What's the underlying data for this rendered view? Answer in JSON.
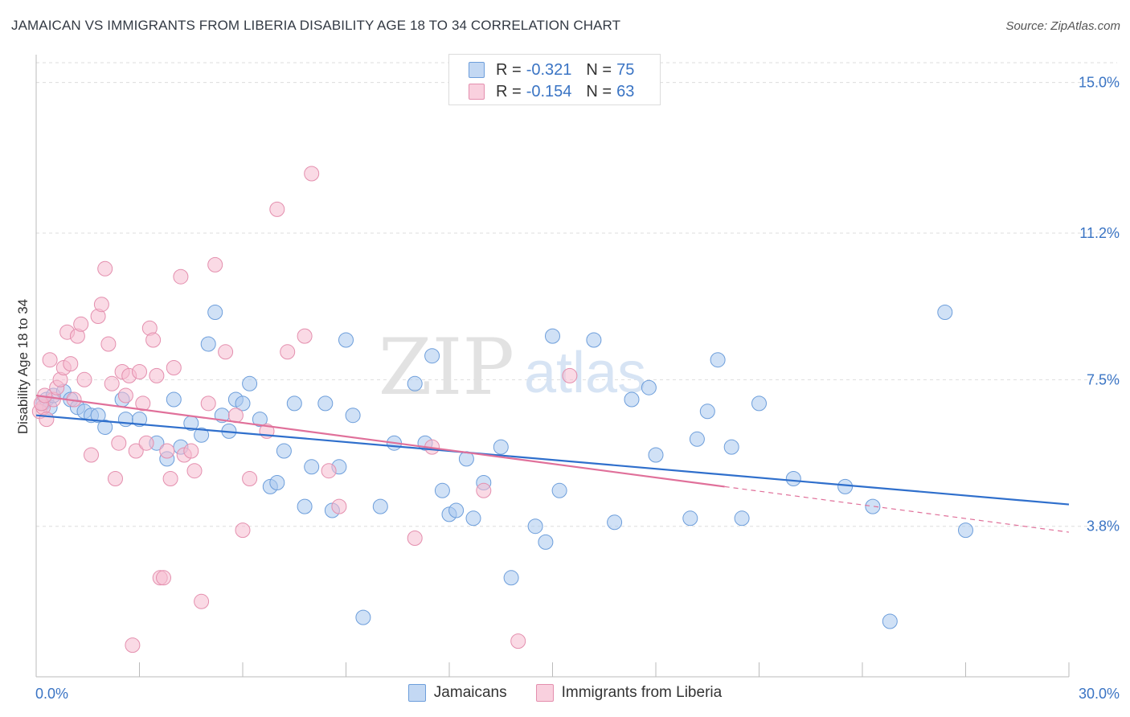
{
  "header": {
    "title": "JAMAICAN VS IMMIGRANTS FROM LIBERIA DISABILITY AGE 18 TO 34 CORRELATION CHART",
    "source": "Source: ZipAtlas.com"
  },
  "watermark": {
    "zip": "ZIP",
    "atlas": "atlas"
  },
  "legend": {
    "rows": [
      {
        "r_label": "R =",
        "r_value": "-0.321",
        "n_label": "N =",
        "n_value": "75"
      },
      {
        "r_label": "R =",
        "r_value": "-0.154",
        "n_label": "N =",
        "n_value": "63"
      }
    ]
  },
  "colors": {
    "blue_fill": "#a9c8ef",
    "blue_stroke": "#6d9edb",
    "blue_line": "#2f6fcc",
    "pink_fill": "#f6bcd0",
    "pink_stroke": "#e48fae",
    "pink_line": "#e0709a",
    "tick_label": "#3a74c4",
    "grid": "#dddddd"
  },
  "chart_data": {
    "type": "scatter",
    "title": "JAMAICAN VS IMMIGRANTS FROM LIBERIA DISABILITY AGE 18 TO 34 CORRELATION CHART",
    "xlabel": "",
    "ylabel": "Disability Age 18 to 34",
    "xlim": [
      0,
      30
    ],
    "ylim": [
      0,
      15.5
    ],
    "x_tick_labels": [
      "0.0%",
      "30.0%"
    ],
    "y_ticks": [
      3.8,
      7.5,
      11.2,
      15.0
    ],
    "y_tick_labels": [
      "3.8%",
      "7.5%",
      "11.2%",
      "15.0%"
    ],
    "grid": true,
    "legend_position": "bottom-center",
    "series": [
      {
        "name": "Jamaicans",
        "color": "#a9c8ef",
        "trend": {
          "x0": 0,
          "y0": 6.6,
          "x1": 30,
          "y1": 4.35
        },
        "points": [
          [
            0.2,
            6.9
          ],
          [
            0.3,
            7.0
          ],
          [
            0.4,
            6.8
          ],
          [
            0.5,
            7.1
          ],
          [
            0.8,
            7.2
          ],
          [
            1.0,
            7.0
          ],
          [
            1.2,
            6.8
          ],
          [
            1.4,
            6.7
          ],
          [
            1.6,
            6.6
          ],
          [
            1.8,
            6.6
          ],
          [
            2.0,
            6.3
          ],
          [
            2.5,
            7.0
          ],
          [
            2.6,
            6.5
          ],
          [
            3.0,
            6.5
          ],
          [
            3.5,
            5.9
          ],
          [
            3.8,
            5.5
          ],
          [
            4.0,
            7.0
          ],
          [
            4.2,
            5.8
          ],
          [
            4.5,
            6.4
          ],
          [
            4.8,
            6.1
          ],
          [
            5.0,
            8.4
          ],
          [
            5.2,
            9.2
          ],
          [
            5.4,
            6.6
          ],
          [
            5.6,
            6.2
          ],
          [
            5.8,
            7.0
          ],
          [
            6.0,
            6.9
          ],
          [
            6.2,
            7.4
          ],
          [
            6.5,
            6.5
          ],
          [
            6.8,
            4.8
          ],
          [
            7.0,
            4.9
          ],
          [
            7.2,
            5.7
          ],
          [
            7.5,
            6.9
          ],
          [
            7.8,
            4.3
          ],
          [
            8.0,
            5.3
          ],
          [
            8.4,
            6.9
          ],
          [
            8.6,
            4.2
          ],
          [
            8.8,
            5.3
          ],
          [
            9.0,
            8.5
          ],
          [
            9.2,
            6.6
          ],
          [
            9.5,
            1.5
          ],
          [
            10.0,
            4.3
          ],
          [
            10.4,
            5.9
          ],
          [
            11.0,
            7.4
          ],
          [
            11.3,
            5.9
          ],
          [
            11.5,
            8.1
          ],
          [
            11.8,
            4.7
          ],
          [
            12.0,
            4.1
          ],
          [
            12.2,
            4.2
          ],
          [
            12.5,
            5.5
          ],
          [
            12.7,
            4.0
          ],
          [
            13.0,
            4.9
          ],
          [
            13.5,
            5.8
          ],
          [
            13.8,
            2.5
          ],
          [
            14.5,
            3.8
          ],
          [
            14.8,
            3.4
          ],
          [
            15.0,
            8.6
          ],
          [
            15.2,
            4.7
          ],
          [
            16.2,
            8.5
          ],
          [
            16.8,
            3.9
          ],
          [
            17.3,
            7.0
          ],
          [
            17.8,
            7.3
          ],
          [
            18.0,
            5.6
          ],
          [
            19.0,
            4.0
          ],
          [
            19.2,
            6.0
          ],
          [
            19.5,
            6.7
          ],
          [
            19.8,
            8.0
          ],
          [
            20.2,
            5.8
          ],
          [
            20.5,
            4.0
          ],
          [
            21.0,
            6.9
          ],
          [
            22.0,
            5.0
          ],
          [
            23.5,
            4.8
          ],
          [
            24.3,
            4.3
          ],
          [
            24.8,
            1.4
          ],
          [
            26.4,
            9.2
          ],
          [
            27.0,
            3.7
          ]
        ]
      },
      {
        "name": "Immigrants from Liberia",
        "color": "#f6bcd0",
        "trend": {
          "x0": 0,
          "y0": 7.1,
          "x1": 20.0,
          "y1": 4.8,
          "dashed_to_x": 30,
          "dashed_to_y": 3.65
        },
        "points": [
          [
            0.1,
            6.7
          ],
          [
            0.2,
            6.8
          ],
          [
            0.3,
            6.5
          ],
          [
            0.4,
            8.0
          ],
          [
            0.5,
            7.0
          ],
          [
            0.6,
            7.3
          ],
          [
            0.7,
            7.5
          ],
          [
            0.8,
            7.8
          ],
          [
            0.9,
            8.7
          ],
          [
            1.0,
            7.9
          ],
          [
            1.1,
            7.0
          ],
          [
            1.2,
            8.6
          ],
          [
            1.3,
            8.9
          ],
          [
            1.4,
            7.5
          ],
          [
            1.6,
            5.6
          ],
          [
            1.8,
            9.1
          ],
          [
            1.9,
            9.4
          ],
          [
            2.0,
            10.3
          ],
          [
            2.1,
            8.4
          ],
          [
            2.2,
            7.4
          ],
          [
            2.3,
            5.0
          ],
          [
            2.4,
            5.9
          ],
          [
            2.5,
            7.7
          ],
          [
            2.6,
            7.1
          ],
          [
            2.7,
            7.6
          ],
          [
            2.8,
            0.8
          ],
          [
            2.9,
            5.7
          ],
          [
            3.0,
            7.7
          ],
          [
            3.1,
            6.9
          ],
          [
            3.2,
            5.9
          ],
          [
            3.3,
            8.8
          ],
          [
            3.4,
            8.5
          ],
          [
            3.5,
            7.6
          ],
          [
            3.6,
            2.5
          ],
          [
            3.7,
            2.5
          ],
          [
            3.8,
            5.7
          ],
          [
            3.9,
            5.0
          ],
          [
            4.0,
            7.8
          ],
          [
            4.2,
            10.1
          ],
          [
            4.3,
            5.6
          ],
          [
            4.5,
            5.7
          ],
          [
            4.6,
            5.2
          ],
          [
            4.8,
            1.9
          ],
          [
            5.0,
            6.9
          ],
          [
            5.2,
            10.4
          ],
          [
            5.5,
            8.2
          ],
          [
            5.8,
            6.6
          ],
          [
            6.0,
            3.7
          ],
          [
            6.2,
            5.0
          ],
          [
            6.7,
            6.2
          ],
          [
            7.0,
            11.8
          ],
          [
            7.3,
            8.2
          ],
          [
            7.8,
            8.6
          ],
          [
            8.0,
            12.7
          ],
          [
            8.5,
            5.2
          ],
          [
            8.8,
            4.3
          ],
          [
            11.0,
            3.5
          ],
          [
            11.5,
            5.8
          ],
          [
            13.0,
            4.7
          ],
          [
            14.0,
            0.9
          ],
          [
            15.5,
            7.6
          ],
          [
            0.15,
            6.9
          ],
          [
            0.25,
            7.1
          ]
        ]
      }
    ]
  },
  "bottom_legend": {
    "items": [
      "Jamaicans",
      "Immigrants from Liberia"
    ]
  }
}
